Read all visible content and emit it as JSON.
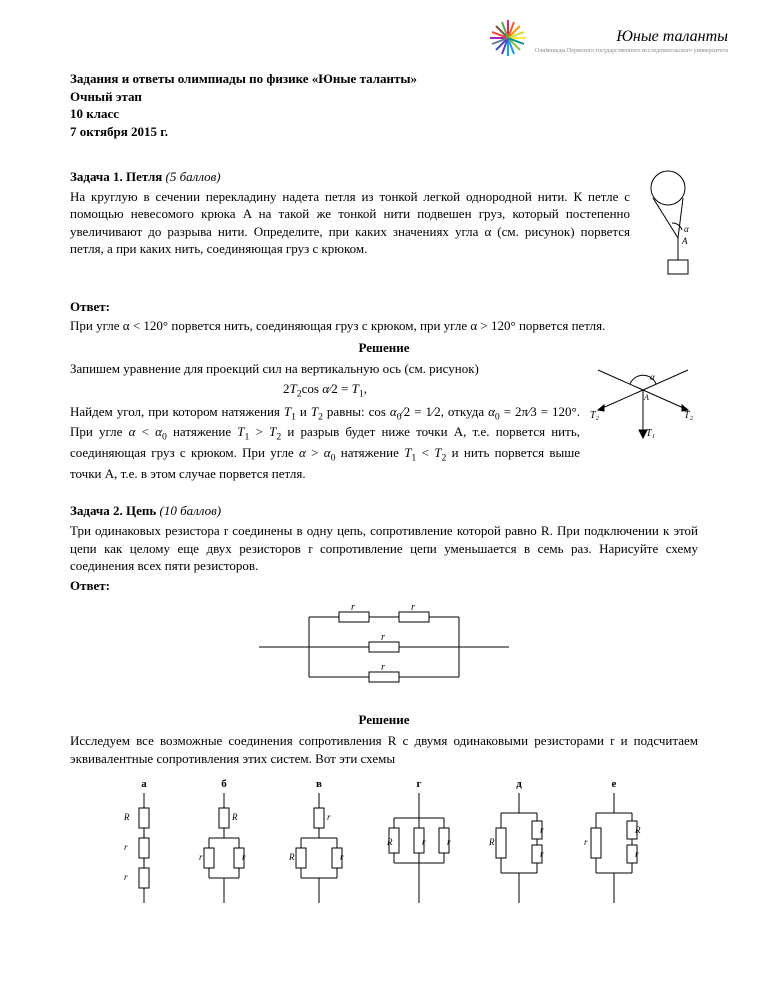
{
  "logo": {
    "script": "Юные таланты",
    "subline": "Олимпиады Пермского государственного исследовательского университета",
    "burst_colors": [
      "#e91e63",
      "#ff9800",
      "#ffeb3b",
      "#8bc34a",
      "#03a9f4",
      "#3f51b5",
      "#9c27b0",
      "#795548"
    ]
  },
  "header": {
    "l1": "Задания и ответы олимпиады по физике «Юные таланты»",
    "l2": "Очный этап",
    "l3": "10 класс",
    "l4": "7 октября 2015 г."
  },
  "task1": {
    "title": "Задача 1. Петля",
    "points": "(5 баллов)",
    "body": "На круглую в сечении перекладину надета петля из тонкой легкой однородной нити. К петле с помощью невесомого крюка A на такой же тонкой нити подвешен груз, который постепенно увеличивают до разрыва нити. Определите, при каких значениях угла α (см. рисунок) порвется петля, а при каких нить, соединяющая груз с крюком.",
    "answer_label": "Ответ:",
    "answer": "При угле α < 120° порвется нить, соединяющая груз с крюком, при угле α > 120° порвется петля.",
    "solution_title": "Решение",
    "sol_p1": "Запишем уравнение для проекций сил на вертикальную ось (см. рисунок)",
    "sol_eq1_html": "2<span class='math'>T</span><sub>2</sub>cos <span class='math'>α</span>⁄2 = <span class='math'>T</span><sub>1</sub>,",
    "sol_p2_html": "Найдем угол, при котором натяжения <span class='math'>T</span><sub>1</sub> и <span class='math'>T</span><sub>2</sub> равны: cos <span class='math'>α</span><sub>0</sub>⁄2 = 1⁄2, откуда <span class='math'>α</span><sub>0</sub> = 2π⁄3 = 120°. При угле <span class='math'>α</span> &lt; <span class='math'>α</span><sub>0</sub> натяжение <span class='math'>T</span><sub>1</sub> &gt; <span class='math'>T</span><sub>2</sub> и разрыв будет ниже точки A, т.е. порвется нить, соединяющая груз с крюком. При угле <span class='math'>α</span> &gt; <span class='math'>α</span><sub>0</sub> натяжение <span class='math'>T</span><sub>1</sub> &lt; <span class='math'>T</span><sub>2</sub> и нить порвется выше точки A, т.е. в этом случае порвется петля.",
    "fig_labels": {
      "A": "A",
      "alpha": "α",
      "T1": "T₁",
      "T2": "T₂"
    }
  },
  "task2": {
    "title": "Задача 2. Цепь",
    "points": "(10 баллов)",
    "body": "Три одинаковых резистора r соединены в одну цепь, сопротивление которой равно R. При подключении к этой цепи как целому еще двух резисторов r сопротивление цепи уменьшается в семь раз. Нарисуйте схему соединения всех пяти резисторов.",
    "answer_label": "Ответ:",
    "solution_title": "Решение",
    "sol_p1": "Исследуем все возможные соединения сопротивления R с двумя одинаковыми резисторами r и подсчитаем эквивалентные сопротивления этих систем. Вот эти схемы",
    "resistor_label": "r",
    "scheme_labels": [
      "а",
      "б",
      "в",
      "г",
      "д",
      "е"
    ],
    "scheme_R": "R",
    "scheme_r": "r"
  },
  "colors": {
    "text": "#000000",
    "line": "#000000",
    "bg": "#ffffff"
  }
}
